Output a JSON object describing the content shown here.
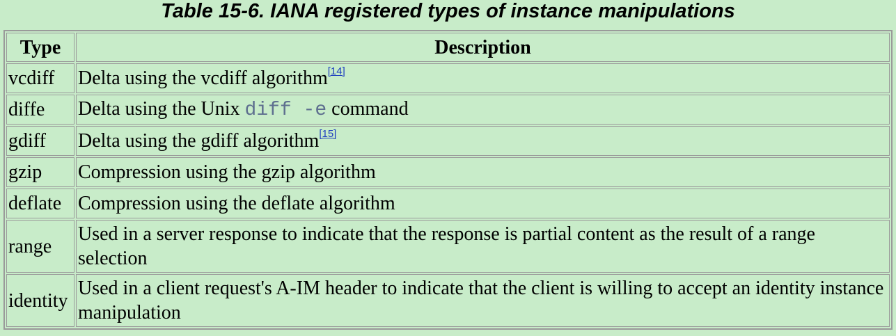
{
  "caption": "Table 15-6. IANA registered types of instance manipulations",
  "headers": {
    "type": "Type",
    "description": "Description"
  },
  "rows": [
    {
      "type": "vcdiff",
      "desc_before": "Delta using the vcdiff algorithm",
      "footnote": "[14]"
    },
    {
      "type": "diffe",
      "desc_before": "Delta using the Unix ",
      "code": "diff -e",
      "desc_after": " command"
    },
    {
      "type": "gdiff",
      "desc_before": "Delta using the gdiff algorithm",
      "footnote": "[15]"
    },
    {
      "type": "gzip",
      "desc_before": "Compression using the gzip algorithm"
    },
    {
      "type": "deflate",
      "desc_before": "Compression using the deflate algorithm"
    },
    {
      "type": "range",
      "desc_before": "Used in a server response to indicate that the response is partial content as the result of a range selection"
    },
    {
      "type": "identity",
      "desc_before": "Used in a client request's A-IM header to indicate that the client is willing to accept an identity instance manipulation"
    }
  ],
  "colors": {
    "background": "#c8ecc9",
    "border": "#9a9a9a",
    "code_text": "#5e6f8f",
    "link": "#1f3fbf"
  }
}
